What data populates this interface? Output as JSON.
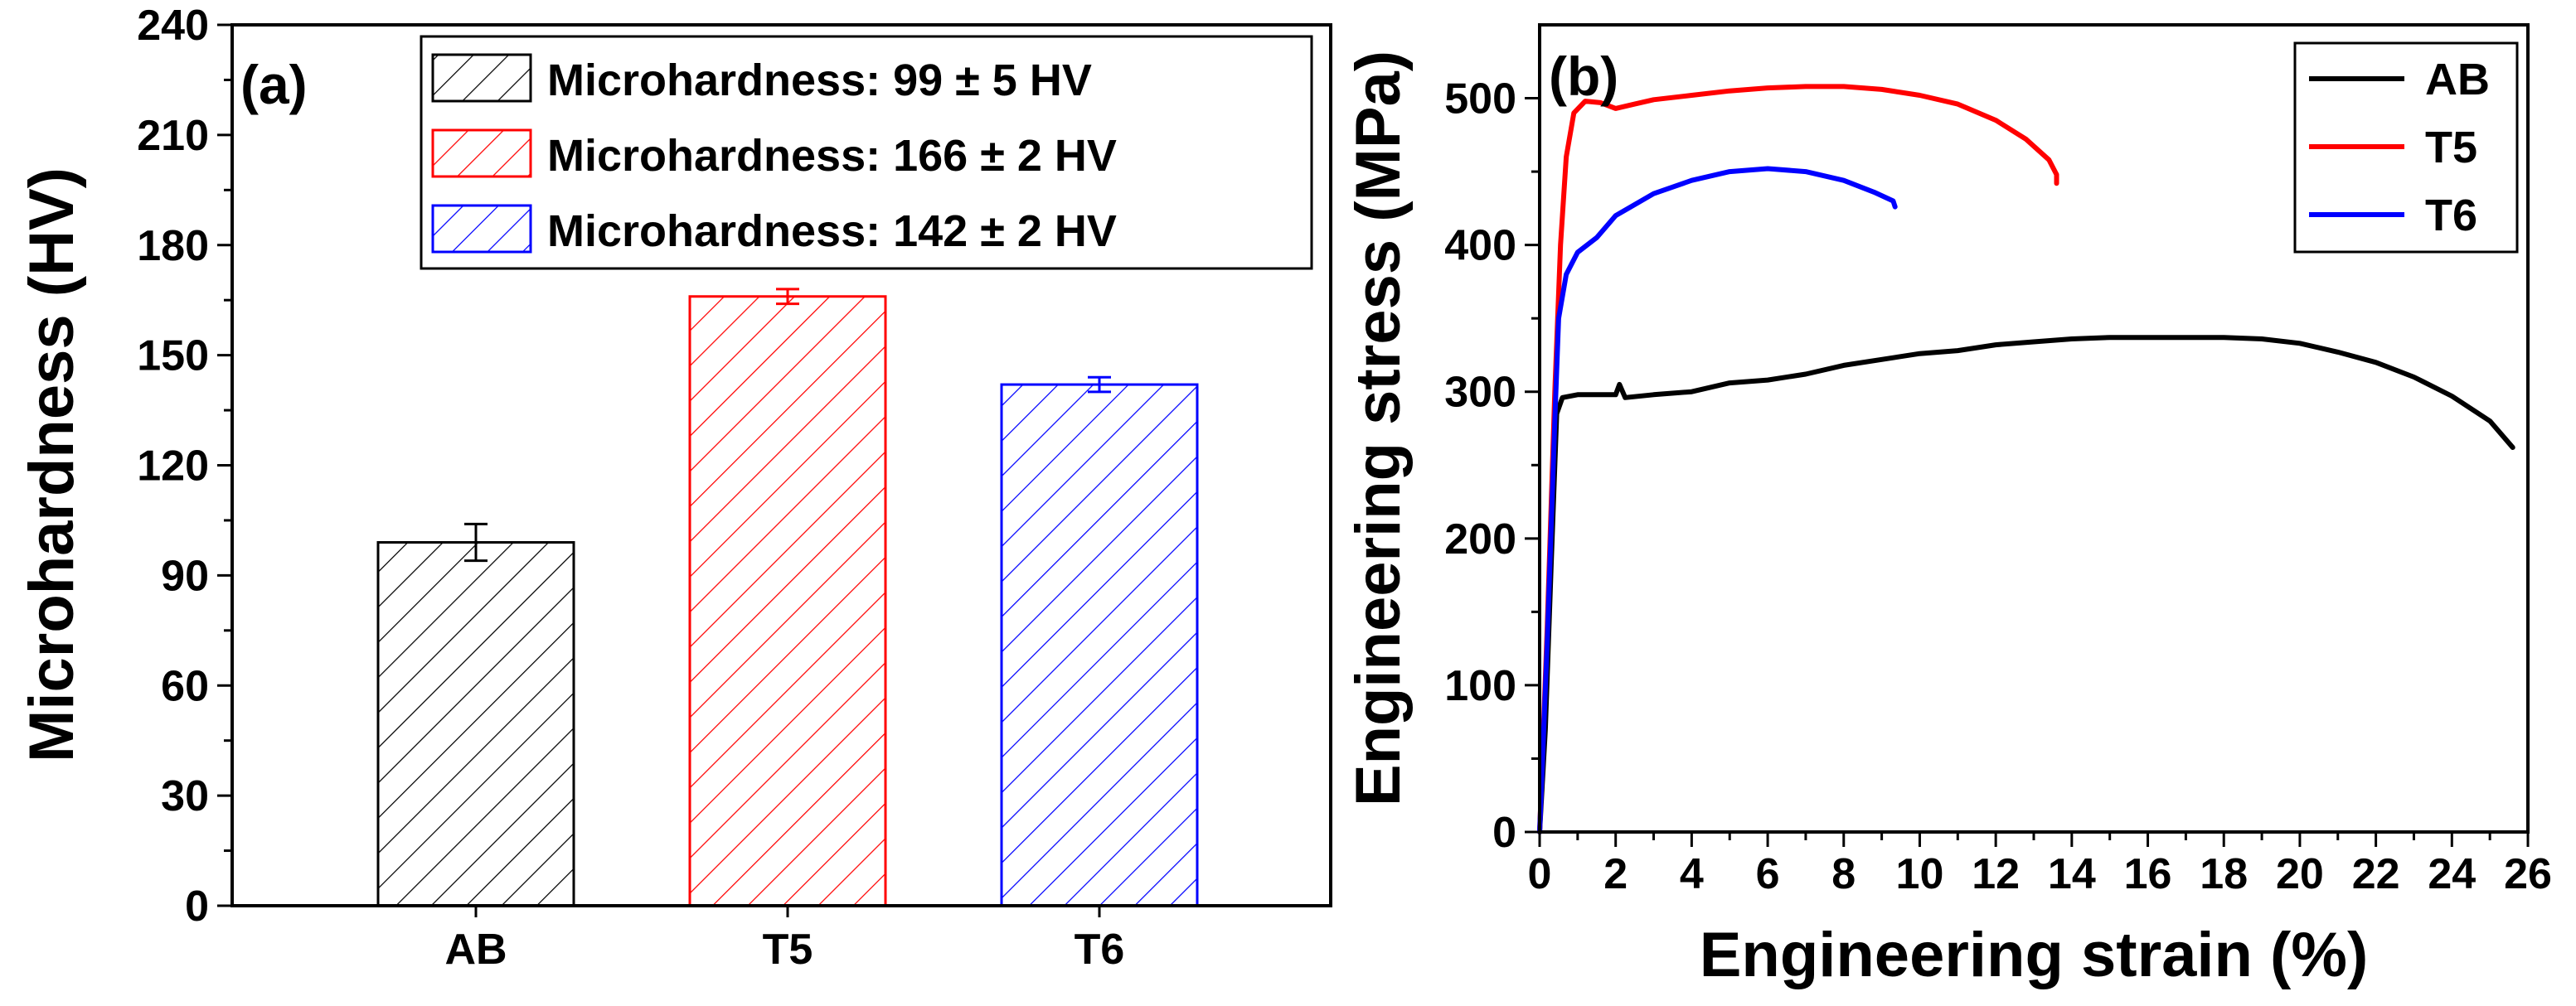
{
  "chart_data": [
    {
      "panel": "(a)",
      "type": "bar",
      "ylabel": "Microhardness (HV)",
      "xlabel": "",
      "ylim": [
        0,
        240
      ],
      "yticks": [
        "0",
        "30",
        "60",
        "90",
        "120",
        "150",
        "180",
        "210",
        "240"
      ],
      "categories": [
        "AB",
        "T5",
        "T6"
      ],
      "values": [
        99,
        166,
        142
      ],
      "errors": [
        5,
        2,
        2
      ],
      "colors": [
        "#000000",
        "#ff0000",
        "#0000ff"
      ],
      "legend_position": "top-right",
      "legend": [
        "Microhardness: 99 ± 5 HV",
        "Microhardness: 166 ± 2 HV",
        "Microhardness: 142 ± 2 HV"
      ]
    },
    {
      "panel": "(b)",
      "type": "line",
      "xlabel": "Engineering strain (%)",
      "ylabel": "Engineering stress (MPa)",
      "xlim": [
        0,
        26
      ],
      "ylim": [
        0,
        550
      ],
      "xticks": [
        "0",
        "2",
        "4",
        "6",
        "8",
        "10",
        "12",
        "14",
        "16",
        "18",
        "20",
        "22",
        "24",
        "26"
      ],
      "yticks": [
        "0",
        "100",
        "200",
        "300",
        "400",
        "500"
      ],
      "legend_position": "top-right",
      "series": [
        {
          "name": "AB",
          "color": "#000000",
          "points": [
            [
              0,
              0
            ],
            [
              0.15,
              70
            ],
            [
              0.3,
              180
            ],
            [
              0.45,
              285
            ],
            [
              0.6,
              296
            ],
            [
              1.0,
              298
            ],
            [
              2.0,
              298
            ],
            [
              2.1,
              305
            ],
            [
              2.25,
              296
            ],
            [
              3.0,
              298
            ],
            [
              4.0,
              300
            ],
            [
              5.0,
              306
            ],
            [
              6.0,
              308
            ],
            [
              7.0,
              312
            ],
            [
              8.0,
              318
            ],
            [
              9.0,
              322
            ],
            [
              10.0,
              326
            ],
            [
              11.0,
              328
            ],
            [
              12.0,
              332
            ],
            [
              13.0,
              334
            ],
            [
              14.0,
              336
            ],
            [
              15.0,
              337
            ],
            [
              16.0,
              337
            ],
            [
              17.0,
              337
            ],
            [
              18.0,
              337
            ],
            [
              19.0,
              336
            ],
            [
              20.0,
              333
            ],
            [
              21.0,
              327
            ],
            [
              22.0,
              320
            ],
            [
              23.0,
              310
            ],
            [
              24.0,
              297
            ],
            [
              25.0,
              280
            ],
            [
              25.6,
              262
            ]
          ]
        },
        {
          "name": "T5",
          "color": "#ff0000",
          "points": [
            [
              0,
              0
            ],
            [
              0.2,
              140
            ],
            [
              0.4,
              300
            ],
            [
              0.55,
              400
            ],
            [
              0.7,
              460
            ],
            [
              0.9,
              490
            ],
            [
              1.2,
              498
            ],
            [
              1.6,
              497
            ],
            [
              2.0,
              493
            ],
            [
              2.5,
              496
            ],
            [
              3.0,
              499
            ],
            [
              4.0,
              502
            ],
            [
              5.0,
              505
            ],
            [
              6.0,
              507
            ],
            [
              7.0,
              508
            ],
            [
              8.0,
              508
            ],
            [
              9.0,
              506
            ],
            [
              10.0,
              502
            ],
            [
              11.0,
              496
            ],
            [
              12.0,
              485
            ],
            [
              12.8,
              472
            ],
            [
              13.4,
              458
            ],
            [
              13.6,
              448
            ],
            [
              13.6,
              442
            ]
          ]
        },
        {
          "name": "T6",
          "color": "#0000ff",
          "points": [
            [
              0,
              0
            ],
            [
              0.2,
              130
            ],
            [
              0.4,
              280
            ],
            [
              0.5,
              350
            ],
            [
              0.7,
              380
            ],
            [
              1.0,
              395
            ],
            [
              1.5,
              405
            ],
            [
              2.0,
              420
            ],
            [
              3.0,
              435
            ],
            [
              4.0,
              444
            ],
            [
              5.0,
              450
            ],
            [
              6.0,
              452
            ],
            [
              7.0,
              450
            ],
            [
              8.0,
              444
            ],
            [
              8.8,
              436
            ],
            [
              9.3,
              430
            ],
            [
              9.35,
              426
            ]
          ]
        }
      ]
    }
  ]
}
